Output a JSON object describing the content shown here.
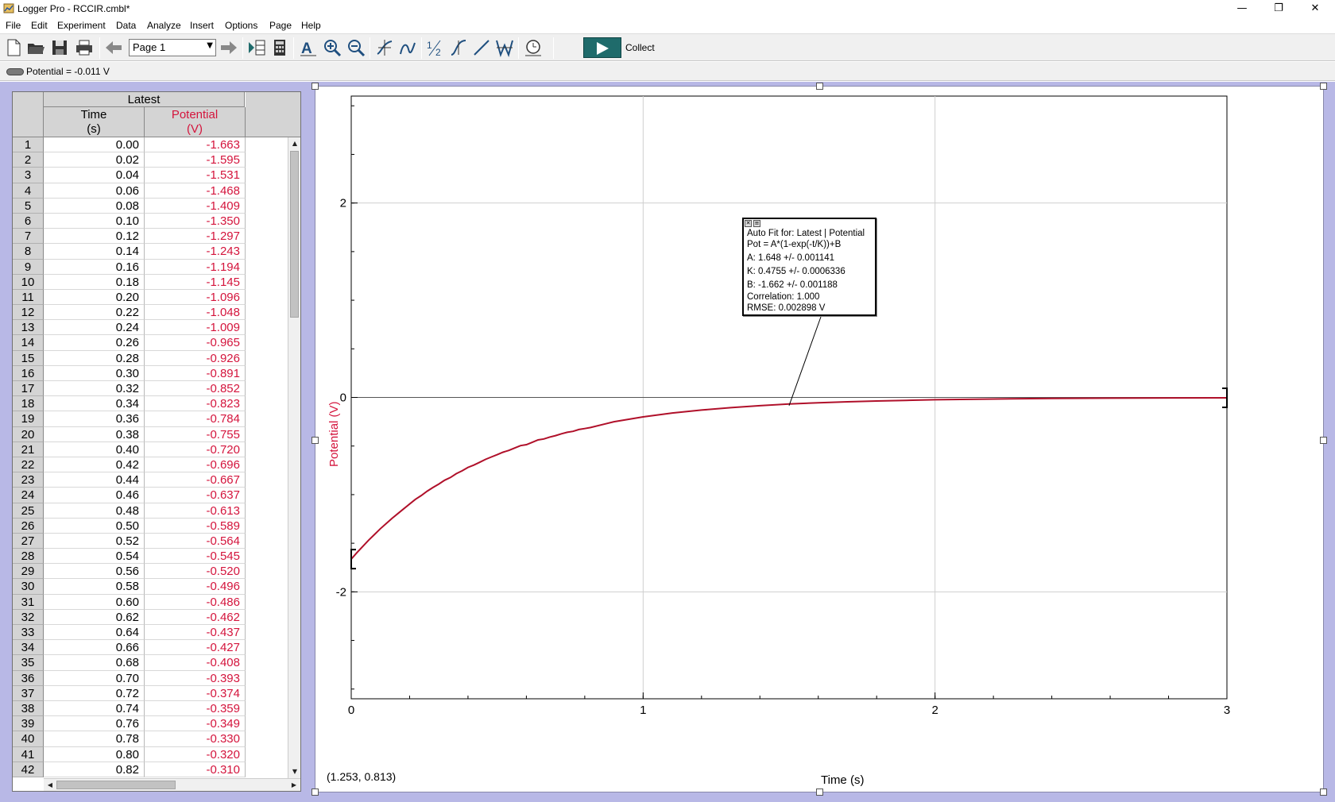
{
  "window": {
    "title": "Logger Pro - RCCIR.cmbl*",
    "minimize_glyph": "—",
    "restore_glyph": "❐",
    "close_glyph": "✕"
  },
  "menu": [
    "File",
    "Edit",
    "Experiment",
    "Data",
    "Analyze",
    "Insert",
    "Options",
    "Page",
    "Help"
  ],
  "toolbar": {
    "page_select": "Page 1",
    "collect_label": "Collect",
    "accent": "#1f6b6b"
  },
  "meter": {
    "text": "Potential = -0.011 V"
  },
  "table": {
    "group_header": "Latest",
    "columns": [
      {
        "name": "Time",
        "unit": "(s)",
        "color": "#000000"
      },
      {
        "name": "Potential",
        "unit": "(V)",
        "color": "#d4143c"
      }
    ],
    "rows": [
      [
        "1",
        "0.00",
        "-1.663"
      ],
      [
        "2",
        "0.02",
        "-1.595"
      ],
      [
        "3",
        "0.04",
        "-1.531"
      ],
      [
        "4",
        "0.06",
        "-1.468"
      ],
      [
        "5",
        "0.08",
        "-1.409"
      ],
      [
        "6",
        "0.10",
        "-1.350"
      ],
      [
        "7",
        "0.12",
        "-1.297"
      ],
      [
        "8",
        "0.14",
        "-1.243"
      ],
      [
        "9",
        "0.16",
        "-1.194"
      ],
      [
        "10",
        "0.18",
        "-1.145"
      ],
      [
        "11",
        "0.20",
        "-1.096"
      ],
      [
        "12",
        "0.22",
        "-1.048"
      ],
      [
        "13",
        "0.24",
        "-1.009"
      ],
      [
        "14",
        "0.26",
        "-0.965"
      ],
      [
        "15",
        "0.28",
        "-0.926"
      ],
      [
        "16",
        "0.30",
        "-0.891"
      ],
      [
        "17",
        "0.32",
        "-0.852"
      ],
      [
        "18",
        "0.34",
        "-0.823"
      ],
      [
        "19",
        "0.36",
        "-0.784"
      ],
      [
        "20",
        "0.38",
        "-0.755"
      ],
      [
        "21",
        "0.40",
        "-0.720"
      ],
      [
        "22",
        "0.42",
        "-0.696"
      ],
      [
        "23",
        "0.44",
        "-0.667"
      ],
      [
        "24",
        "0.46",
        "-0.637"
      ],
      [
        "25",
        "0.48",
        "-0.613"
      ],
      [
        "26",
        "0.50",
        "-0.589"
      ],
      [
        "27",
        "0.52",
        "-0.564"
      ],
      [
        "28",
        "0.54",
        "-0.545"
      ],
      [
        "29",
        "0.56",
        "-0.520"
      ],
      [
        "30",
        "0.58",
        "-0.496"
      ],
      [
        "31",
        "0.60",
        "-0.486"
      ],
      [
        "32",
        "0.62",
        "-0.462"
      ],
      [
        "33",
        "0.64",
        "-0.437"
      ],
      [
        "34",
        "0.66",
        "-0.427"
      ],
      [
        "35",
        "0.68",
        "-0.408"
      ],
      [
        "36",
        "0.70",
        "-0.393"
      ],
      [
        "37",
        "0.72",
        "-0.374"
      ],
      [
        "38",
        "0.74",
        "-0.359"
      ],
      [
        "39",
        "0.76",
        "-0.349"
      ],
      [
        "40",
        "0.78",
        "-0.330"
      ],
      [
        "41",
        "0.80",
        "-0.320"
      ],
      [
        "42",
        "0.82",
        "-0.310"
      ]
    ]
  },
  "graph": {
    "xlabel": "Time (s)",
    "ylabel": "Potential (V)",
    "coord_readout": "(1.253, 0.813)",
    "fit_box": {
      "lines": [
        "Auto Fit for: Latest | Potential",
        "Pot = A*(1-exp(-t/K))+B",
        "A: 1.648 +/- 0.001141",
        "K: 0.4755 +/- 0.0006336",
        "B: -1.662 +/- 0.001188",
        "Correlation: 1.000",
        "RMSE: 0.002898 V"
      ],
      "pointer_t": 1.5
    }
  },
  "chart_data": {
    "type": "line",
    "xlabel": "Time (s)",
    "ylabel": "Potential (V)",
    "xlim": [
      0,
      3
    ],
    "ylim": [
      -3.1,
      3.1
    ],
    "xticks": [
      0,
      1,
      2,
      3
    ],
    "yticks": [
      -2,
      0,
      2
    ],
    "grid": true,
    "series_color": "#b0102a",
    "fit": {
      "A": 1.648,
      "K": 0.4755,
      "B": -1.662
    },
    "series": [
      {
        "x": [
          0,
          0.02,
          0.04,
          0.06,
          0.08,
          0.1,
          0.12,
          0.14,
          0.16,
          0.18,
          0.2,
          0.22,
          0.24,
          0.26,
          0.28,
          0.3,
          0.32,
          0.34,
          0.36,
          0.38,
          0.4,
          0.42,
          0.44,
          0.46,
          0.48,
          0.5,
          0.52,
          0.54,
          0.56,
          0.58,
          0.6,
          0.62,
          0.64,
          0.66,
          0.68,
          0.7,
          0.72,
          0.74,
          0.76,
          0.78,
          0.8,
          0.82,
          0.9,
          1.0,
          1.1,
          1.2,
          1.3,
          1.4,
          1.5,
          1.6,
          1.7,
          1.8,
          1.9,
          2.0,
          2.2,
          2.4,
          2.6,
          2.8,
          3.0
        ],
        "y": [
          -1.663,
          -1.595,
          -1.531,
          -1.468,
          -1.409,
          -1.35,
          -1.297,
          -1.243,
          -1.194,
          -1.145,
          -1.096,
          -1.048,
          -1.009,
          -0.965,
          -0.926,
          -0.891,
          -0.852,
          -0.823,
          -0.784,
          -0.755,
          -0.72,
          -0.696,
          -0.667,
          -0.637,
          -0.613,
          -0.589,
          -0.564,
          -0.545,
          -0.52,
          -0.496,
          -0.486,
          -0.462,
          -0.437,
          -0.427,
          -0.408,
          -0.393,
          -0.374,
          -0.359,
          -0.349,
          -0.33,
          -0.32,
          -0.31,
          -0.25,
          -0.2,
          -0.16,
          -0.13,
          -0.105,
          -0.085,
          -0.068,
          -0.055,
          -0.045,
          -0.037,
          -0.03,
          -0.024,
          -0.016,
          -0.011,
          -0.007,
          -0.005,
          -0.004
        ]
      }
    ]
  }
}
